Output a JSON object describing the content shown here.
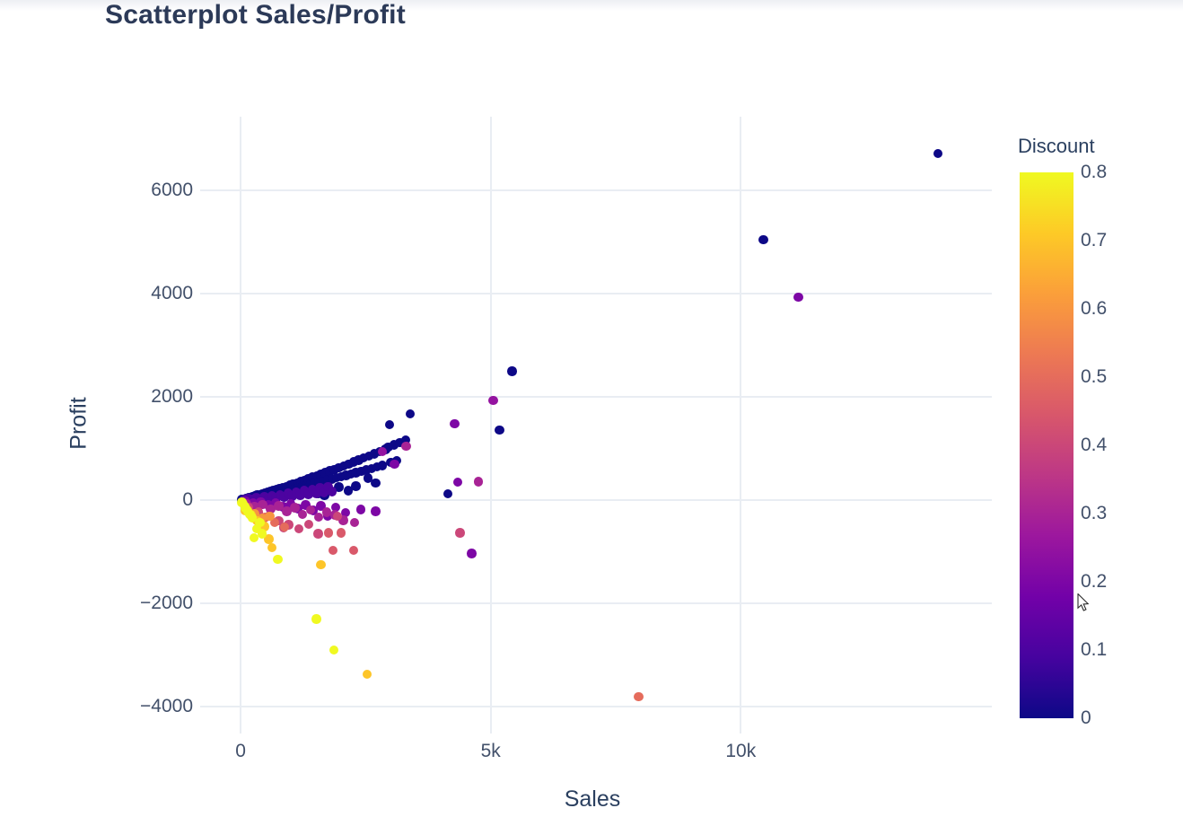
{
  "page": {
    "title": "Scatterplot Sales/Profit"
  },
  "colors": {
    "title_text": "#2c3a58",
    "tick_text": "#42506a",
    "grid": "#e9edf3",
    "background": "#ffffff"
  },
  "chart_data": {
    "type": "scatter",
    "title": "Scatterplot Sales/Profit",
    "xlabel": "Sales",
    "ylabel": "Profit",
    "grid": true,
    "legend_position": "right-colorbar",
    "colorscale_name": "Plasma",
    "colorbar": {
      "title": "Discount",
      "min": 0,
      "max": 0.8,
      "ticks": [
        {
          "value": 0.8,
          "label": "0.8"
        },
        {
          "value": 0.7,
          "label": "0.7"
        },
        {
          "value": 0.6,
          "label": "0.6"
        },
        {
          "value": 0.5,
          "label": "0.5"
        },
        {
          "value": 0.4,
          "label": "0.4"
        },
        {
          "value": 0.3,
          "label": "0.3"
        },
        {
          "value": 0.2,
          "label": "0.2"
        },
        {
          "value": 0.1,
          "label": "0.1"
        },
        {
          "value": 0,
          "label": "0"
        }
      ]
    },
    "x_ticks": [
      {
        "value": 0,
        "label": "0"
      },
      {
        "value": 5000,
        "label": "5k"
      },
      {
        "value": 10000,
        "label": "10k"
      }
    ],
    "y_ticks": [
      {
        "value": 6000,
        "label": "6000"
      },
      {
        "value": 4000,
        "label": "4000"
      },
      {
        "value": 2000,
        "label": "2000"
      },
      {
        "value": 0,
        "label": "0"
      },
      {
        "value": -2000,
        "label": "−2000"
      },
      {
        "value": -4000,
        "label": "−4000"
      }
    ],
    "xlim": [
      -810,
      15020
    ],
    "ylim": [
      -4520,
      7425
    ],
    "point_fields": [
      "sales",
      "profit",
      "discount"
    ],
    "points": [
      [
        12,
        3,
        0
      ],
      [
        28,
        8,
        0
      ],
      [
        45,
        14,
        0
      ],
      [
        62,
        10,
        0
      ],
      [
        80,
        22,
        0
      ],
      [
        98,
        17,
        0
      ],
      [
        117,
        32,
        0
      ],
      [
        136,
        26,
        0
      ],
      [
        156,
        42,
        0
      ],
      [
        176,
        33,
        0
      ],
      [
        197,
        52,
        0
      ],
      [
        218,
        42,
        0
      ],
      [
        240,
        65,
        0
      ],
      [
        262,
        50,
        0
      ],
      [
        285,
        78,
        0
      ],
      [
        308,
        60,
        0
      ],
      [
        332,
        92,
        0
      ],
      [
        356,
        71,
        0
      ],
      [
        381,
        105,
        0
      ],
      [
        406,
        82,
        0
      ],
      [
        432,
        120,
        0
      ],
      [
        458,
        94,
        0
      ],
      [
        485,
        135,
        0
      ],
      [
        512,
        106,
        0
      ],
      [
        540,
        152,
        0
      ],
      [
        568,
        118,
        0
      ],
      [
        597,
        168,
        0
      ],
      [
        626,
        131,
        0
      ],
      [
        656,
        186,
        0
      ],
      [
        686,
        144,
        0
      ],
      [
        717,
        204,
        0
      ],
      [
        748,
        158,
        0
      ],
      [
        780,
        224,
        0
      ],
      [
        812,
        172,
        0
      ],
      [
        845,
        244,
        0
      ],
      [
        878,
        187,
        0
      ],
      [
        912,
        265,
        0
      ],
      [
        946,
        202,
        0
      ],
      [
        981,
        287,
        0
      ],
      [
        1016,
        218,
        0
      ],
      [
        1052,
        310,
        0
      ],
      [
        1088,
        234,
        0
      ],
      [
        1125,
        334,
        0
      ],
      [
        1162,
        251,
        0
      ],
      [
        1200,
        359,
        0
      ],
      [
        1238,
        269,
        0
      ],
      [
        1277,
        385,
        0
      ],
      [
        1316,
        287,
        0
      ],
      [
        1356,
        412,
        0
      ],
      [
        1396,
        306,
        0
      ],
      [
        1437,
        440,
        0
      ],
      [
        1478,
        325,
        0
      ],
      [
        1520,
        469,
        0
      ],
      [
        1562,
        345,
        0
      ],
      [
        1605,
        499,
        0
      ],
      [
        1648,
        366,
        0
      ],
      [
        1692,
        530,
        0
      ],
      [
        1736,
        388,
        0
      ],
      [
        1781,
        562,
        0
      ],
      [
        1826,
        410,
        0
      ],
      [
        1872,
        595,
        0
      ],
      [
        1918,
        433,
        0
      ],
      [
        1965,
        629,
        0
      ],
      [
        2012,
        457,
        0
      ],
      [
        2060,
        664,
        0
      ],
      [
        2108,
        481,
        0
      ],
      [
        2157,
        700,
        0
      ],
      [
        2206,
        506,
        0
      ],
      [
        2256,
        737,
        0
      ],
      [
        2306,
        532,
        0
      ],
      [
        2357,
        775,
        0
      ],
      [
        2408,
        558,
        0
      ],
      [
        2460,
        814,
        0
      ],
      [
        2512,
        585,
        0
      ],
      [
        2565,
        854,
        0
      ],
      [
        2618,
        613,
        0
      ],
      [
        2672,
        895,
        0
      ],
      [
        2726,
        641,
        0
      ],
      [
        2781,
        937,
        0
      ],
      [
        2836,
        670,
        0
      ],
      [
        2892,
        980,
        0
      ],
      [
        2948,
        1024,
        0
      ],
      [
        3005,
        731,
        0
      ],
      [
        3063,
        1069,
        0
      ],
      [
        3121,
        763,
        0
      ],
      [
        3180,
        1115,
        0
      ],
      [
        3300,
        1162,
        0
      ],
      [
        2980,
        1460,
        0
      ],
      [
        3390,
        1670,
        0
      ],
      [
        4140,
        120,
        0
      ],
      [
        5180,
        1360,
        0
      ],
      [
        5430,
        2500,
        0
      ],
      [
        10450,
        5040,
        0
      ],
      [
        13940,
        6710,
        0
      ],
      [
        1550,
        120,
        0
      ],
      [
        1680,
        90,
        0
      ],
      [
        2150,
        180,
        0
      ],
      [
        1960,
        250,
        0
      ],
      [
        2300,
        270,
        0
      ],
      [
        2550,
        430,
        0
      ],
      [
        2700,
        330,
        0
      ],
      [
        70,
        10,
        0.1
      ],
      [
        150,
        25,
        0.1
      ],
      [
        230,
        12,
        0.1
      ],
      [
        310,
        45,
        0.1
      ],
      [
        390,
        22,
        0.1
      ],
      [
        470,
        65,
        0.1
      ],
      [
        550,
        35,
        0.1
      ],
      [
        630,
        85,
        0.1
      ],
      [
        710,
        48,
        0.1
      ],
      [
        790,
        108,
        0.1
      ],
      [
        870,
        62,
        0.1
      ],
      [
        950,
        130,
        0.1
      ],
      [
        1030,
        78,
        0.1
      ],
      [
        1110,
        155,
        0.1
      ],
      [
        1190,
        95,
        0.1
      ],
      [
        1270,
        180,
        0.1
      ],
      [
        1350,
        112,
        0.1
      ],
      [
        1430,
        205,
        0.1
      ],
      [
        1510,
        130,
        0.1
      ],
      [
        1590,
        232,
        0.1
      ],
      [
        1670,
        150,
        0.1
      ],
      [
        1750,
        260,
        0.1
      ],
      [
        1830,
        170,
        0.1
      ],
      [
        100,
        -25,
        0.2
      ],
      [
        250,
        -60,
        0.2
      ],
      [
        400,
        -35,
        0.2
      ],
      [
        550,
        -95,
        0.2
      ],
      [
        700,
        -55,
        0.2
      ],
      [
        850,
        -130,
        0.2
      ],
      [
        1000,
        -75,
        0.2
      ],
      [
        1150,
        -165,
        0.2
      ],
      [
        1300,
        -95,
        0.2
      ],
      [
        1450,
        -200,
        0.2
      ],
      [
        1600,
        -115,
        0.2
      ],
      [
        1740,
        -300,
        0.2
      ],
      [
        1900,
        -140,
        0.2
      ],
      [
        2100,
        -240,
        0.2
      ],
      [
        2400,
        -180,
        0.2
      ],
      [
        2700,
        -220,
        0.2
      ],
      [
        3080,
        700,
        0.2
      ],
      [
        4280,
        1480,
        0.2
      ],
      [
        4340,
        350,
        0.2
      ],
      [
        4620,
        -1030,
        0.2
      ],
      [
        11150,
        3930,
        0.2
      ],
      [
        2830,
        940,
        0.25
      ],
      [
        5050,
        1930,
        0.25
      ],
      [
        120,
        -70,
        0.3
      ],
      [
        280,
        -120,
        0.3
      ],
      [
        440,
        -85,
        0.3
      ],
      [
        600,
        -170,
        0.3
      ],
      [
        760,
        -115,
        0.3
      ],
      [
        920,
        -220,
        0.3
      ],
      [
        1080,
        -150,
        0.3
      ],
      [
        1240,
        -275,
        0.3
      ],
      [
        1400,
        -190,
        0.3
      ],
      [
        1560,
        -330,
        0.3
      ],
      [
        1720,
        -235,
        0.3
      ],
      [
        1880,
        -285,
        0.3
      ],
      [
        2050,
        -390,
        0.3
      ],
      [
        2280,
        -430,
        0.3
      ],
      [
        3310,
        1040,
        0.3
      ],
      [
        4750,
        360,
        0.3
      ],
      [
        160,
        -140,
        0.4
      ],
      [
        360,
        -230,
        0.4
      ],
      [
        560,
        -310,
        0.4
      ],
      [
        760,
        -400,
        0.4
      ],
      [
        960,
        -480,
        0.4
      ],
      [
        1160,
        -560,
        0.4
      ],
      [
        1360,
        -470,
        0.4
      ],
      [
        1940,
        -310,
        0.4
      ],
      [
        4390,
        -630,
        0.4
      ],
      [
        1550,
        -650,
        0.4
      ],
      [
        860,
        -530,
        0.4
      ],
      [
        1760,
        -630,
        0.45
      ],
      [
        2010,
        -630,
        0.45
      ],
      [
        1850,
        -970,
        0.45
      ],
      [
        2260,
        -970,
        0.45
      ],
      [
        480,
        -340,
        0.5
      ],
      [
        680,
        -430,
        0.5
      ],
      [
        880,
        -520,
        0.5
      ],
      [
        7960,
        -3810,
        0.5
      ],
      [
        130,
        -190,
        0.6
      ],
      [
        280,
        -270,
        0.6
      ],
      [
        430,
        -350,
        0.6
      ],
      [
        580,
        -310,
        0.6
      ],
      [
        90,
        -200,
        0.7
      ],
      [
        200,
        -290,
        0.7
      ],
      [
        330,
        -400,
        0.7
      ],
      [
        470,
        -510,
        0.7
      ],
      [
        560,
        -760,
        0.7
      ],
      [
        630,
        -920,
        0.7
      ],
      [
        1600,
        -1250,
        0.7
      ],
      [
        2530,
        -3370,
        0.7
      ],
      [
        25,
        -45,
        0.8
      ],
      [
        50,
        -70,
        0.8
      ],
      [
        90,
        -125,
        0.8
      ],
      [
        100,
        -155,
        0.8
      ],
      [
        145,
        -215,
        0.8
      ],
      [
        190,
        -280,
        0.8
      ],
      [
        235,
        -335,
        0.8
      ],
      [
        270,
        -730,
        0.8
      ],
      [
        320,
        -560,
        0.8
      ],
      [
        380,
        -430,
        0.8
      ],
      [
        430,
        -650,
        0.8
      ],
      [
        740,
        -1150,
        0.8
      ],
      [
        1510,
        -2300,
        0.8
      ],
      [
        1860,
        -2900,
        0.8
      ]
    ]
  }
}
